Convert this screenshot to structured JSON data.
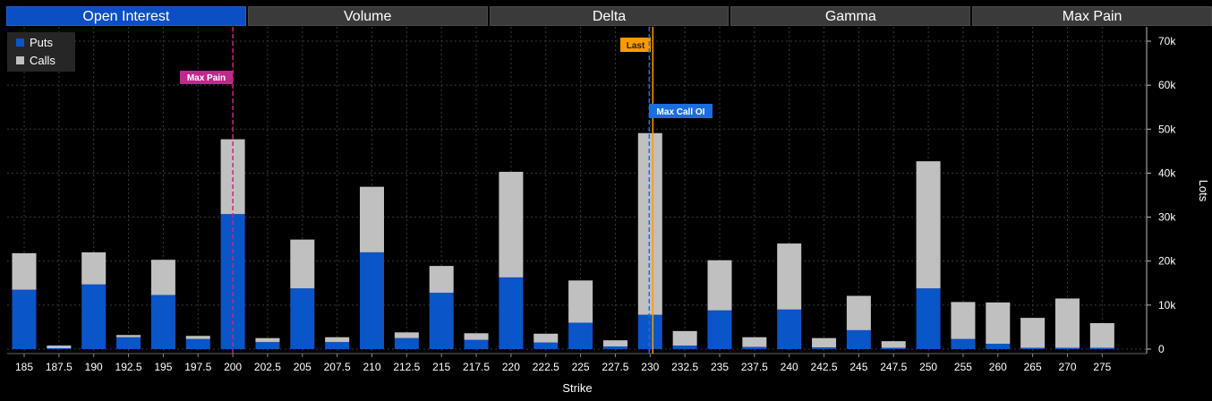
{
  "tabs": [
    {
      "label": "Open Interest",
      "active": true
    },
    {
      "label": "Volume",
      "active": false
    },
    {
      "label": "Delta",
      "active": false
    },
    {
      "label": "Gamma",
      "active": false
    },
    {
      "label": "Max Pain",
      "active": false
    }
  ],
  "colors": {
    "puts": "#0a55c8",
    "calls": "#c0c0c0",
    "max_pain": "#c0288c",
    "last": "#ff9900",
    "max_call_oi": "#1a6ee0",
    "grid": "#3a3a3a"
  },
  "legend": {
    "puts": "Puts",
    "calls": "Calls"
  },
  "chart_data": {
    "type": "bar",
    "stacked": true,
    "xlabel": "Strike",
    "ylabel": "Lots",
    "ylim": [
      0,
      70000
    ],
    "yticks": [
      0,
      10000,
      20000,
      30000,
      40000,
      50000,
      60000,
      70000
    ],
    "ytick_labels": [
      "0",
      "10k",
      "20k",
      "30k",
      "40k",
      "50k",
      "60k",
      "70k"
    ],
    "categories": [
      "185",
      "187.5",
      "190",
      "192.5",
      "195",
      "197.5",
      "200",
      "202.5",
      "205",
      "207.5",
      "210",
      "212.5",
      "215",
      "217.5",
      "220",
      "222.5",
      "225",
      "227.5",
      "230",
      "232.5",
      "235",
      "237.5",
      "240",
      "242.5",
      "245",
      "247.5",
      "250",
      "255",
      "260",
      "265",
      "270",
      "275"
    ],
    "series": [
      {
        "name": "Puts",
        "values": [
          13500,
          200,
          14700,
          2700,
          12300,
          2300,
          30700,
          1600,
          13800,
          1600,
          22000,
          2500,
          12800,
          2100,
          16300,
          1500,
          6000,
          600,
          7800,
          800,
          8800,
          500,
          9000,
          400,
          4300,
          300,
          13800,
          2300,
          1200,
          300,
          300,
          300
        ]
      },
      {
        "name": "Calls",
        "values": [
          8300,
          600,
          7300,
          500,
          8000,
          700,
          17000,
          900,
          11100,
          1100,
          14900,
          1300,
          6100,
          1500,
          24000,
          2000,
          9600,
          1400,
          41300,
          3300,
          11400,
          2200,
          15000,
          2100,
          7800,
          1500,
          28900,
          8400,
          9400,
          6800,
          11200,
          5600
        ]
      }
    ],
    "annotations": [
      {
        "label": "Max Pain",
        "strike": "200",
        "type": "vline-dashed"
      },
      {
        "label": "Last",
        "strike": "230",
        "type": "vline-solid"
      },
      {
        "label": "Max Call OI",
        "strike": "230",
        "type": "vline-dashed"
      }
    ]
  }
}
